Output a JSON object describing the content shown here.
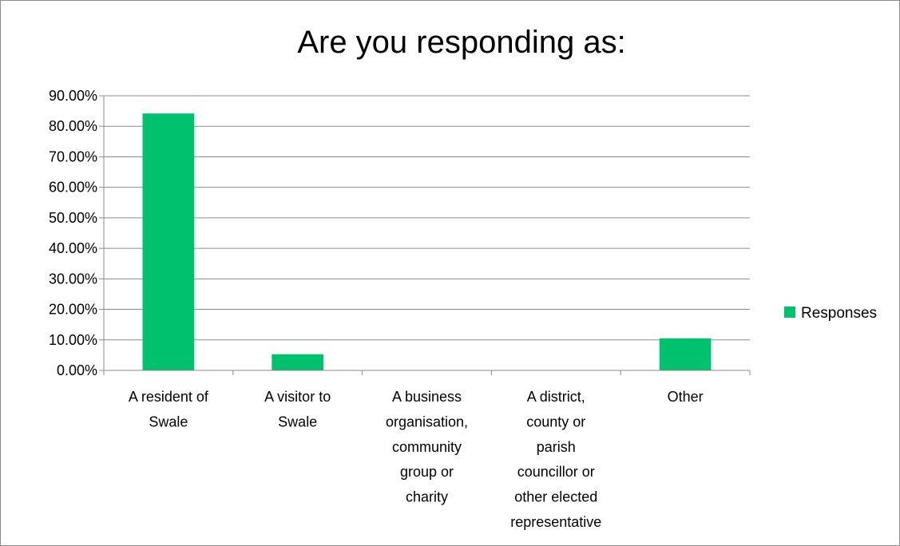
{
  "chart_data": {
    "type": "bar",
    "title": "Are you responding as:",
    "xlabel": "",
    "ylabel": "",
    "ylim": [
      0,
      0.9
    ],
    "y_ticks": [
      "0.00%",
      "10.00%",
      "20.00%",
      "30.00%",
      "40.00%",
      "50.00%",
      "60.00%",
      "70.00%",
      "80.00%",
      "90.00%"
    ],
    "categories": [
      [
        "A resident of",
        "Swale"
      ],
      [
        "A visitor to",
        "Swale"
      ],
      [
        "A business",
        "organisation,",
        "community",
        "group or",
        "charity"
      ],
      [
        "A district,",
        "county or",
        "parish",
        "councillor or",
        "other elected",
        "representative"
      ],
      [
        "Other"
      ]
    ],
    "series": [
      {
        "name": "Responses",
        "color": "#00c16e",
        "values": [
          0.842,
          0.053,
          0.0,
          0.0,
          0.105
        ]
      }
    ],
    "grid": true,
    "legend_position": "right"
  }
}
